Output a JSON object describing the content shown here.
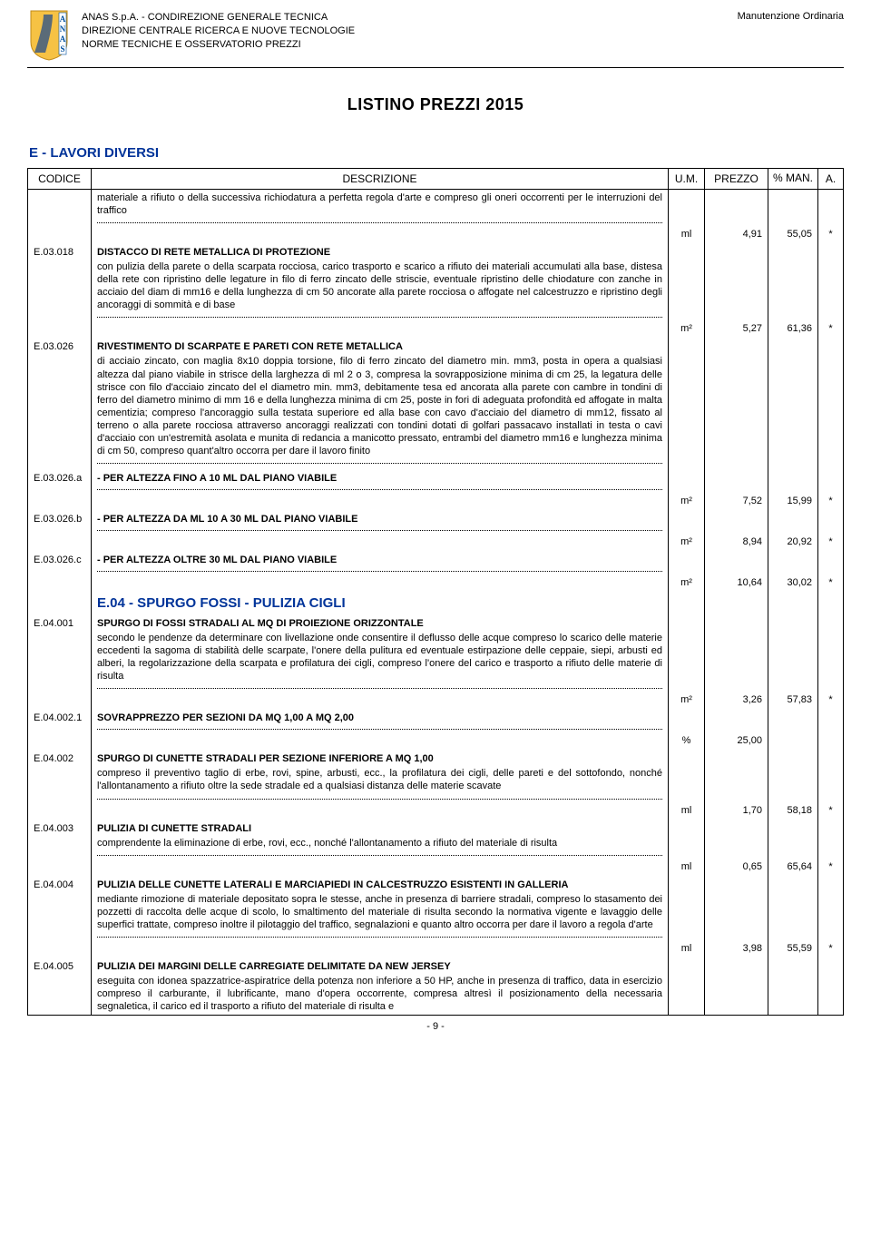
{
  "header": {
    "org_line1": "ANAS S.p.A. - CONDIREZIONE GENERALE TECNICA",
    "org_line2": "DIREZIONE CENTRALE RICERCA E NUOVE TECNOLOGIE",
    "org_line3": "NORME TECNICHE E OSSERVATORIO PREZZI",
    "top_right": "Manutenzione Ordinaria",
    "logo_colors": {
      "shield": "#f6c244",
      "text": "#0050a0",
      "border": "#0050a0"
    }
  },
  "doc_title": "LISTINO PREZZI 2015",
  "section_title": "E - LAVORI DIVERSI",
  "columns": {
    "code": "CODICE",
    "desc": "DESCRIZIONE",
    "um": "U.M.",
    "price": "PREZZO",
    "man": "% MAN.",
    "a": "A."
  },
  "rows": [
    {
      "code": "",
      "text": "materiale a rifiuto o della successiva richiodatura a perfetta regola d'arte e compreso gli oneri occorrenti per le interruzioni del traffico",
      "um": "ml",
      "price": "4,91",
      "man": "55,05",
      "a": "*"
    },
    {
      "code": "E.03.018",
      "title": "DISTACCO DI RETE METALLICA DI PROTEZIONE",
      "text": "con pulizia della parete o della scarpata rocciosa, carico trasporto e scarico a rifiuto dei materiali accumulati alla base, distesa della rete con ripristino delle legature in filo di ferro zincato delle striscie, eventuale ripristino delle chiodature con zanche in acciaio del diam di mm16 e della lunghezza di cm 50 ancorate alla parete rocciosa o affogate nel calcestruzzo e ripristino degli ancoraggi di sommità e di base",
      "um": "m²",
      "price": "5,27",
      "man": "61,36",
      "a": "*"
    },
    {
      "code": "E.03.026",
      "title": "RIVESTIMENTO DI SCARPATE E PARETI CON RETE METALLICA",
      "text": "di acciaio zincato, con maglia 8x10 doppia torsione, filo di ferro zincato del diametro min. mm3, posta in opera a qualsiasi altezza dal piano viabile in strisce della larghezza di ml 2 o 3, compresa la sovrapposizione minima di cm 25, la legatura delle strisce con filo d'acciaio zincato del el diametro min. mm3, debitamente tesa ed ancorata alla parete con cambre in tondini di ferro del diametro minimo di mm 16 e della lunghezza minima di cm 25, poste in fori di adeguata profondità ed affogate in malta cementizia; compreso l'ancoraggio sulla testata superiore ed alla base con cavo d'acciaio del diametro di mm12, fissato al terreno o alla parete rocciosa attraverso ancoraggi realizzati con tondini dotati di golfari passacavo installati in testa o cavi d'acciaio con un'estremità asolata e munita di redancia a manicotto pressato, entrambi del diametro mm16 e lunghezza minima di cm 50, compreso quant'altro occorra per dare il lavoro finito",
      "um": "",
      "price": "",
      "man": "",
      "a": ""
    },
    {
      "code": "E.03.026.a",
      "title": "- PER ALTEZZA FINO A 10 ML DAL PIANO VIABILE",
      "um": "m²",
      "price": "7,52",
      "man": "15,99",
      "a": "*"
    },
    {
      "code": "E.03.026.b",
      "title": "- PER ALTEZZA DA ML 10 A 30 ML DAL PIANO VIABILE",
      "um": "m²",
      "price": "8,94",
      "man": "20,92",
      "a": "*"
    },
    {
      "code": "E.03.026.c",
      "title": "- PER ALTEZZA OLTRE 30 ML DAL PIANO VIABILE",
      "um": "m²",
      "price": "10,64",
      "man": "30,02",
      "a": "*"
    },
    {
      "subsection": "E.04 - SPURGO FOSSI - PULIZIA CIGLI"
    },
    {
      "code": "E.04.001",
      "title": "SPURGO DI FOSSI STRADALI AL MQ DI PROIEZIONE ORIZZONTALE",
      "text": "secondo le pendenze da determinare con livellazione onde consentire il deflusso delle acque compreso lo scarico delle materie eccedenti la sagoma di stabilità delle scarpate, l'onere della pulitura ed eventuale estirpazione delle ceppaie, siepi, arbusti ed alberi, la regolarizzazione della scarpata e profilatura dei cigli, compreso l'onere del carico e trasporto a rifiuto delle materie di risulta",
      "um": "m²",
      "price": "3,26",
      "man": "57,83",
      "a": "*"
    },
    {
      "code": "E.04.002.1",
      "title": "SOVRAPPREZZO PER SEZIONI DA MQ 1,00 A MQ 2,00",
      "um": "%",
      "price": "25,00",
      "man": "",
      "a": ""
    },
    {
      "code": "E.04.002",
      "title": "SPURGO DI CUNETTE STRADALI PER SEZIONE INFERIORE A MQ 1,00",
      "text": "compreso il preventivo taglio di erbe, rovi, spine, arbusti, ecc., la profilatura dei cigli, delle pareti e del sottofondo, nonché l'allontanamento a rifiuto oltre la sede stradale ed a qualsiasi distanza delle materie scavate",
      "um": "ml",
      "price": "1,70",
      "man": "58,18",
      "a": "*"
    },
    {
      "code": "E.04.003",
      "title": "PULIZIA DI CUNETTE STRADALI",
      "text": "comprendente la eliminazione di erbe, rovi, ecc., nonché l'allontanamento a rifiuto del materiale di risulta",
      "um": "ml",
      "price": "0,65",
      "man": "65,64",
      "a": "*"
    },
    {
      "code": "E.04.004",
      "title": "PULIZIA DELLE CUNETTE LATERALI E MARCIAPIEDI IN CALCESTRUZZO ESISTENTI IN GALLERIA",
      "text": "mediante rimozione di materiale depositato sopra le stesse, anche in presenza di barriere stradali, compreso lo stasamento dei pozzetti di raccolta delle acque di scolo, lo smaltimento del materiale di risulta secondo la normativa vigente e lavaggio delle superfici trattate, compreso inoltre il pilotaggio del traffico, segnalazioni e quanto altro occorra per dare il lavoro a regola d'arte",
      "um": "ml",
      "price": "3,98",
      "man": "55,59",
      "a": "*"
    },
    {
      "code": "E.04.005",
      "title": "PULIZIA DEI MARGINI DELLE CARREGIATE DELIMITATE DA NEW JERSEY",
      "text": "eseguita con idonea spazzatrice-aspiratrice della potenza non inferiore a 50 HP, anche in presenza di traffico, data in esercizio compreso il carburante, il lubrificante, mano d'opera occorrente, compresa altresì il posizionamento della necessaria segnaletica, il carico ed il trasporto a rifiuto del materiale di risulta e",
      "no_dots": true
    }
  ],
  "page_number": "- 9 -"
}
